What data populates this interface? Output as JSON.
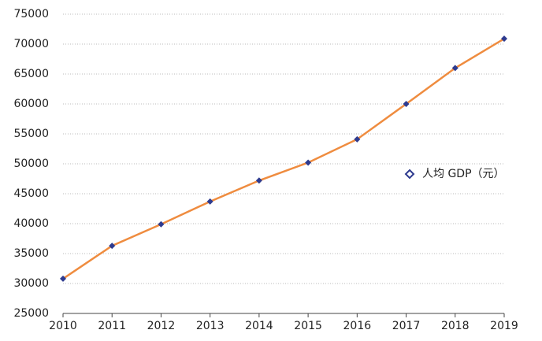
{
  "chart_data": {
    "type": "line",
    "x": [
      2010,
      2011,
      2012,
      2013,
      2014,
      2015,
      2016,
      2017,
      2018,
      2019
    ],
    "series": [
      {
        "name": "人均 GDP（元）",
        "color": "#ef8c3f",
        "marker_color": "#2e3b8f",
        "values": [
          30800,
          36300,
          39900,
          43700,
          47200,
          50200,
          54100,
          60000,
          66000,
          70900
        ]
      }
    ],
    "xlim": [
      2010,
      2019
    ],
    "xticks": [
      2010,
      2011,
      2012,
      2013,
      2014,
      2015,
      2016,
      2017,
      2018,
      2019
    ],
    "ylim": [
      25000,
      75000
    ],
    "yticks": [
      25000,
      30000,
      35000,
      40000,
      45000,
      50000,
      55000,
      60000,
      65000,
      70000,
      75000
    ],
    "grid": true,
    "legend": "right"
  }
}
